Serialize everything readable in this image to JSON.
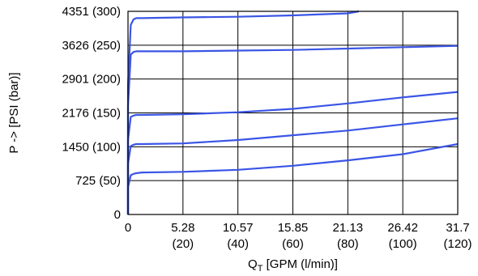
{
  "chart_data": {
    "type": "line",
    "title": "",
    "xlabel_main": "Q",
    "xlabel_sub": "T",
    "xlabel_rest": " [GPM (l/min)]",
    "ylabel": "P -> [PSI (bar)]",
    "xlim": [
      0,
      120
    ],
    "ylim": [
      0,
      300
    ],
    "grid": true,
    "x_ticks": [
      {
        "value": 0,
        "line1": "0",
        "line2": ""
      },
      {
        "value": 20,
        "line1": "5.28",
        "line2": "(20)"
      },
      {
        "value": 40,
        "line1": "10.57",
        "line2": "(40)"
      },
      {
        "value": 60,
        "line1": "15.85",
        "line2": "(60)"
      },
      {
        "value": 80,
        "line1": "21.13",
        "line2": "(80)"
      },
      {
        "value": 100,
        "line1": "26.42",
        "line2": "(100)"
      },
      {
        "value": 120,
        "line1": "31.7",
        "line2": "(120)"
      }
    ],
    "y_ticks": [
      {
        "value": 0,
        "label": "0"
      },
      {
        "value": 50,
        "label": "725 (50)"
      },
      {
        "value": 100,
        "label": "1450 (100)"
      },
      {
        "value": 150,
        "label": "2176 (150)"
      },
      {
        "value": 200,
        "label": "2901 (200)"
      },
      {
        "value": 250,
        "label": "3626 (250)"
      },
      {
        "value": 300,
        "label": "4351 (300)"
      }
    ],
    "line_color": "#3a55e6",
    "series": [
      {
        "x": [
          0,
          0,
          1,
          2,
          3,
          5,
          20,
          40,
          60,
          80,
          100,
          120
        ],
        "y": [
          0,
          40,
          58,
          60,
          61,
          62,
          63,
          66,
          72,
          80,
          89,
          104
        ]
      },
      {
        "x": [
          0,
          0,
          1,
          2,
          3,
          5,
          20,
          40,
          60,
          80,
          100,
          120
        ],
        "y": [
          0,
          75,
          101,
          103,
          104,
          104,
          105,
          110,
          117,
          124,
          133,
          142
        ]
      },
      {
        "x": [
          0,
          0,
          1,
          2,
          3,
          5,
          20,
          40,
          60,
          80,
          100,
          120
        ],
        "y": [
          0,
          110,
          144,
          146,
          147,
          147,
          148,
          151,
          156,
          164,
          173,
          181
        ]
      },
      {
        "x": [
          0,
          0,
          1,
          2,
          3,
          5,
          20,
          40,
          60,
          80,
          100,
          120
        ],
        "y": [
          0,
          160,
          236,
          240,
          241,
          241,
          241,
          242,
          243,
          245,
          247,
          249
        ]
      },
      {
        "x": [
          0,
          0,
          1,
          2,
          3,
          5,
          20,
          40,
          60,
          80,
          84
        ],
        "y": [
          0,
          190,
          280,
          288,
          290,
          290,
          291,
          292,
          294,
          297,
          300
        ]
      }
    ]
  }
}
